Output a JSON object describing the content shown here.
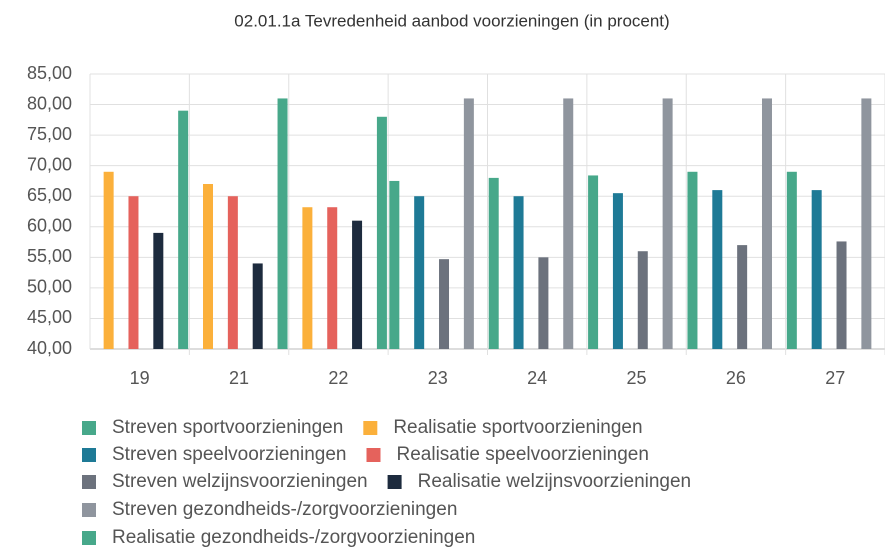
{
  "chart_data": {
    "type": "bar",
    "title": "02.01.1a Tevredenheid aanbod voorzieningen (in procent)",
    "categories": [
      "19",
      "21",
      "22",
      "23",
      "24",
      "25",
      "26",
      "27"
    ],
    "series": [
      {
        "name": "Streven sportvoorzieningen",
        "color": "#47a88a",
        "values": [
          null,
          null,
          null,
          67.5,
          68,
          68.4,
          69,
          69
        ]
      },
      {
        "name": "Realisatie sportvoorzieningen",
        "color": "#fbb03b",
        "values": [
          69,
          67,
          63.2,
          null,
          null,
          null,
          null,
          null
        ]
      },
      {
        "name": "Streven speelvoorzieningen",
        "color": "#1e7a96",
        "values": [
          null,
          null,
          null,
          65,
          65,
          65.5,
          66,
          66
        ]
      },
      {
        "name": "Realisatie speelvoorzieningen",
        "color": "#e5625c",
        "values": [
          65,
          65,
          63.2,
          null,
          null,
          null,
          null,
          null
        ]
      },
      {
        "name": "Streven welzijnsvoorzieningen",
        "color": "#6c727d",
        "values": [
          null,
          null,
          null,
          54.7,
          55,
          56,
          57,
          57.6
        ]
      },
      {
        "name": "Realisatie welzijnsvoorzieningen",
        "color": "#1d2b3e",
        "values": [
          59,
          54,
          61,
          null,
          null,
          null,
          null,
          null
        ]
      },
      {
        "name": "Streven gezondheids-/zorgvoorzieningen",
        "color": "#8f959e",
        "values": [
          null,
          null,
          null,
          81,
          81,
          81,
          81,
          81
        ]
      },
      {
        "name": "Realisatie gezondheids-/zorgvoorzieningen",
        "color": "#47a88a",
        "values": [
          79,
          81,
          78,
          null,
          null,
          null,
          null,
          null
        ]
      }
    ],
    "ylim": [
      40,
      85
    ],
    "yticks": [
      {
        "value": 40,
        "label": "40,00"
      },
      {
        "value": 45,
        "label": "45,00"
      },
      {
        "value": 50,
        "label": "50,00"
      },
      {
        "value": 55,
        "label": "55,00"
      },
      {
        "value": 60,
        "label": "60,00"
      },
      {
        "value": 65,
        "label": "65,00"
      },
      {
        "value": 70,
        "label": "70,00"
      },
      {
        "value": 75,
        "label": "75,00"
      },
      {
        "value": 80,
        "label": "80,00"
      },
      {
        "value": 85,
        "label": "85,00"
      }
    ],
    "grid": true
  }
}
